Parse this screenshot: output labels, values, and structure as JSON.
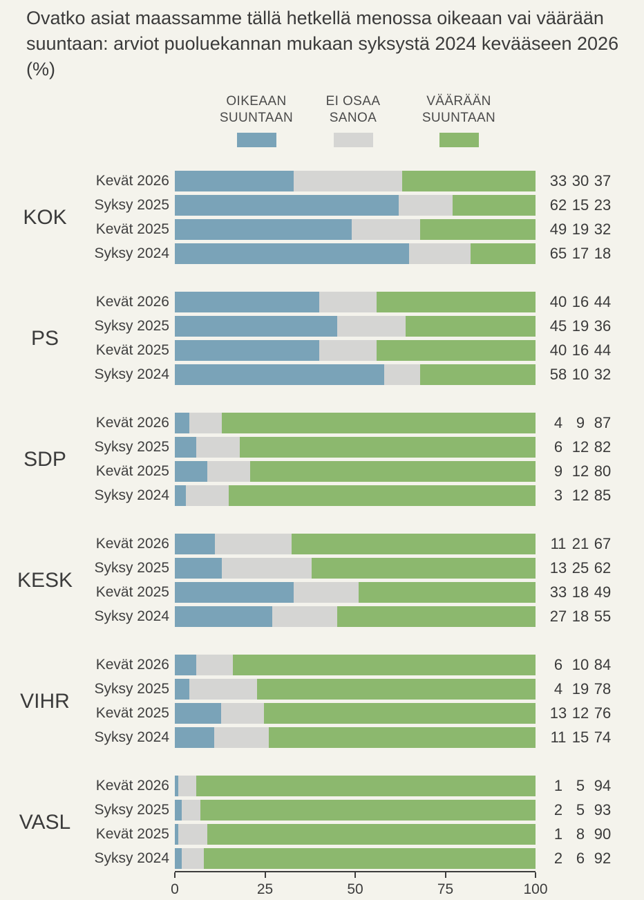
{
  "title": "Ovatko asiat maassamme tällä hetkellä menossa oikeaan vai väärään suuntaan: arviot puoluekannan mukaan syksystä 2024 kevääseen 2026 (%)",
  "colors": {
    "right_direction": "#7aa3b8",
    "dont_know": "#d5d5d3",
    "wrong_direction": "#8cb86e",
    "background": "#f4f3ec",
    "text": "#3b3b3b"
  },
  "legend": [
    {
      "line1": "OIKEAAN",
      "line2": "SUUNTAAN"
    },
    {
      "line1": "EI OSAA",
      "line2": "SANOA"
    },
    {
      "line1": "VÄÄRÄÄN",
      "line2": "SUUNTAAN"
    }
  ],
  "chart_data": {
    "type": "bar",
    "stacked": true,
    "orientation": "horizontal",
    "xlim": [
      0,
      100
    ],
    "x_ticks": [
      0,
      25,
      50,
      75,
      100
    ],
    "grid": false,
    "legend_position": "top",
    "series": [
      {
        "name": "Oikeaan suuntaan",
        "color": "#7aa3b8"
      },
      {
        "name": "Ei osaa sanoa",
        "color": "#d5d5d3"
      },
      {
        "name": "Väärään suuntaan",
        "color": "#8cb86e"
      }
    ],
    "groups": [
      {
        "party": "KOK",
        "rows": [
          {
            "label": "Kevät 2026",
            "values": [
              33,
              30,
              37
            ]
          },
          {
            "label": "Syksy 2025",
            "values": [
              62,
              15,
              23
            ]
          },
          {
            "label": "Kevät 2025",
            "values": [
              49,
              19,
              32
            ]
          },
          {
            "label": "Syksy 2024",
            "values": [
              65,
              17,
              18
            ]
          }
        ]
      },
      {
        "party": "PS",
        "rows": [
          {
            "label": "Kevät 2026",
            "values": [
              40,
              16,
              44
            ]
          },
          {
            "label": "Syksy 2025",
            "values": [
              45,
              19,
              36
            ]
          },
          {
            "label": "Kevät 2025",
            "values": [
              40,
              16,
              44
            ]
          },
          {
            "label": "Syksy 2024",
            "values": [
              58,
              10,
              32
            ]
          }
        ]
      },
      {
        "party": "SDP",
        "rows": [
          {
            "label": "Kevät 2026",
            "values": [
              4,
              9,
              87
            ]
          },
          {
            "label": "Syksy 2025",
            "values": [
              6,
              12,
              82
            ]
          },
          {
            "label": "Kevät 2025",
            "values": [
              9,
              12,
              80
            ]
          },
          {
            "label": "Syksy 2024",
            "values": [
              3,
              12,
              85
            ]
          }
        ]
      },
      {
        "party": "KESK",
        "rows": [
          {
            "label": "Kevät 2026",
            "values": [
              11,
              21,
              67
            ]
          },
          {
            "label": "Syksy 2025",
            "values": [
              13,
              25,
              62
            ]
          },
          {
            "label": "Kevät 2025",
            "values": [
              33,
              18,
              49
            ]
          },
          {
            "label": "Syksy 2024",
            "values": [
              27,
              18,
              55
            ]
          }
        ]
      },
      {
        "party": "VIHR",
        "rows": [
          {
            "label": "Kevät 2026",
            "values": [
              6,
              10,
              84
            ]
          },
          {
            "label": "Syksy 2025",
            "values": [
              4,
              19,
              78
            ]
          },
          {
            "label": "Kevät 2025",
            "values": [
              13,
              12,
              76
            ]
          },
          {
            "label": "Syksy 2024",
            "values": [
              11,
              15,
              74
            ]
          }
        ]
      },
      {
        "party": "VASL",
        "rows": [
          {
            "label": "Kevät 2026",
            "values": [
              1,
              5,
              94
            ]
          },
          {
            "label": "Syksy 2025",
            "values": [
              2,
              5,
              93
            ]
          },
          {
            "label": "Kevät 2025",
            "values": [
              1,
              8,
              90
            ]
          },
          {
            "label": "Syksy 2024",
            "values": [
              2,
              6,
              92
            ]
          }
        ]
      }
    ]
  }
}
